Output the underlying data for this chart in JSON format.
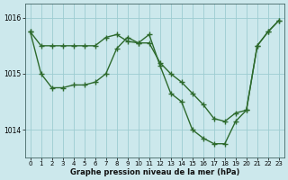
{
  "line1_x": [
    0,
    1,
    2,
    3,
    4,
    5,
    6,
    7,
    8,
    9,
    10,
    11,
    12,
    13,
    14,
    15,
    16,
    17,
    18,
    19,
    20,
    21,
    22,
    23
  ],
  "line1_y": [
    1015.75,
    1015.5,
    1015.5,
    1015.5,
    1015.5,
    1015.5,
    1015.5,
    1015.65,
    1015.7,
    1015.58,
    1015.55,
    1015.55,
    1015.2,
    1015.0,
    1014.85,
    1014.65,
    1014.45,
    1014.2,
    1014.15,
    1014.3,
    1014.35,
    1015.5,
    1015.75,
    1015.95
  ],
  "line2_x": [
    0,
    1,
    2,
    3,
    4,
    5,
    6,
    7,
    8,
    9,
    10,
    11,
    12,
    13,
    14,
    15,
    16,
    17,
    18,
    19,
    20,
    21,
    22,
    23
  ],
  "line2_y": [
    1015.75,
    1015.0,
    1014.75,
    1014.75,
    1014.8,
    1014.8,
    1014.85,
    1015.0,
    1015.45,
    1015.65,
    1015.55,
    1015.7,
    1015.15,
    1014.65,
    1014.5,
    1014.0,
    1013.85,
    1013.75,
    1013.75,
    1014.15,
    1014.35,
    1015.5,
    1015.75,
    1015.95
  ],
  "bg_color": "#cce8ec",
  "grid_color": "#9dccd1",
  "line_color": "#2d6a2d",
  "marker": "+",
  "markersize": 4,
  "linewidth": 1.0,
  "ylabel_ticks": [
    1014,
    1015,
    1016
  ],
  "xlabel_ticks": [
    0,
    1,
    2,
    3,
    4,
    5,
    6,
    7,
    8,
    9,
    10,
    11,
    12,
    13,
    14,
    15,
    16,
    17,
    18,
    19,
    20,
    21,
    22,
    23
  ],
  "xlabel": "Graphe pression niveau de la mer (hPa)",
  "ylim": [
    1013.5,
    1016.25
  ],
  "xlim": [
    -0.5,
    23.5
  ]
}
